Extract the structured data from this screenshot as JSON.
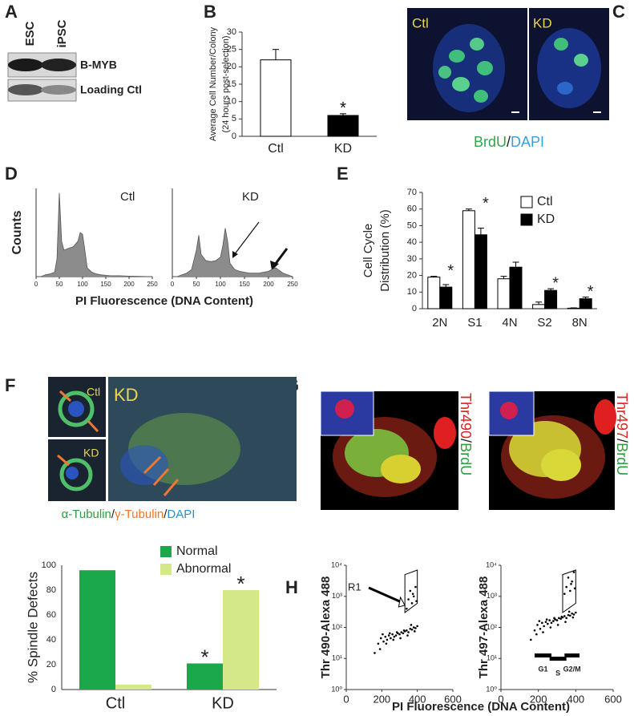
{
  "panels": {
    "A": {
      "letter": "A",
      "lanes": [
        "ESC",
        "iPSC"
      ],
      "bands": [
        "B-MYB",
        "Loading Ctl"
      ]
    },
    "B": {
      "letter": "B"
    },
    "C": {
      "letter": "C",
      "labels": [
        "Ctl",
        "KD"
      ],
      "caption": [
        "BrdU",
        "/",
        "DAPI"
      ]
    },
    "D": {
      "letter": "D"
    },
    "E": {
      "letter": "E"
    },
    "F": {
      "letter": "F",
      "labels": [
        "Ctl",
        "KD",
        "KD"
      ],
      "caption": [
        "α-Tubulin",
        "/",
        "γ-Tubulin",
        "/",
        "DAPI"
      ]
    },
    "G": {
      "letter": "G",
      "labels": [
        [
          "Thr490",
          "/",
          "BrdU"
        ],
        [
          "Thr497",
          "/",
          "BrdU"
        ]
      ]
    },
    "H": {
      "letter": "H"
    }
  },
  "chart_data": [
    {
      "type": "bar",
      "ylabel": [
        "Average Cell Number/Colony",
        "(24 hours post-selection)"
      ],
      "categories": [
        "Ctl",
        "KD"
      ],
      "values": [
        22,
        6
      ],
      "errors": [
        3,
        0.5
      ],
      "colors": [
        "#ffffff",
        "#000000"
      ],
      "significance": [
        null,
        "*"
      ],
      "ylim": [
        0,
        30
      ],
      "yticks": [
        0,
        5,
        10,
        15,
        20,
        25,
        30
      ]
    },
    {
      "type": "area",
      "label": "Ctl",
      "ylabel": "Counts",
      "xlabel": "PI Fluorescence (DNA Content)",
      "color": "#8c8c8c",
      "x": [
        0,
        10,
        20,
        30,
        40,
        45,
        50,
        55,
        60,
        70,
        80,
        90,
        95,
        100,
        105,
        110,
        120,
        130,
        140,
        160,
        180,
        200,
        220,
        250
      ],
      "values": [
        0,
        0,
        2,
        3,
        5,
        20,
        95,
        40,
        30,
        32,
        34,
        40,
        50,
        48,
        30,
        10,
        5,
        3,
        2,
        1,
        1,
        0.5,
        0.3,
        0
      ],
      "xlim": [
        0,
        250
      ],
      "xticks": [
        0,
        50,
        100,
        150,
        200,
        250
      ],
      "ylim": [
        0,
        100
      ]
    },
    {
      "type": "area",
      "label": "KD",
      "color": "#8c8c8c",
      "x": [
        0,
        10,
        20,
        30,
        40,
        50,
        55,
        60,
        70,
        80,
        90,
        100,
        105,
        110,
        115,
        120,
        130,
        140,
        160,
        180,
        200,
        210,
        215,
        220,
        230,
        240,
        250
      ],
      "values": [
        0,
        0,
        2,
        4,
        8,
        30,
        47,
        25,
        18,
        17,
        18,
        22,
        35,
        55,
        40,
        15,
        8,
        6,
        4,
        4,
        6,
        9,
        10,
        8,
        4,
        2,
        0
      ],
      "xlim": [
        0,
        250
      ],
      "xticks": [
        0,
        50,
        100,
        150,
        200,
        250
      ],
      "ylim": [
        0,
        100
      ]
    },
    {
      "type": "bar",
      "ylabel": [
        "Cell Cycle",
        "Distribution (%)"
      ],
      "categories": [
        "2N",
        "S1",
        "4N",
        "S2",
        "8N"
      ],
      "series": [
        {
          "name": "Ctl",
          "color": "#ffffff",
          "values": [
            19,
            59,
            18,
            2.5,
            0.3
          ],
          "errors": [
            0.5,
            1,
            1.5,
            1.5,
            0.2
          ]
        },
        {
          "name": "KD",
          "color": "#000000",
          "values": [
            13,
            44.5,
            25,
            11,
            6
          ],
          "errors": [
            1.5,
            4,
            3,
            1,
            1
          ]
        }
      ],
      "significance": [
        "*",
        "*",
        null,
        "*",
        "*"
      ],
      "ylim": [
        0,
        70
      ],
      "yticks": [
        0,
        10,
        20,
        30,
        40,
        50,
        60,
        70
      ]
    },
    {
      "type": "bar",
      "ylabel": "% Spindle Defects",
      "categories": [
        "Ctl",
        "KD"
      ],
      "series": [
        {
          "name": "Normal",
          "color": "#1aa84a",
          "values": [
            96,
            21
          ],
          "significance": [
            null,
            "*"
          ]
        },
        {
          "name": "Abnormal",
          "color": "#d4e88a",
          "values": [
            4,
            80
          ],
          "significance": [
            null,
            "*"
          ]
        }
      ],
      "ylim": [
        0,
        100
      ],
      "yticks": [
        0,
        20,
        40,
        60,
        80,
        100
      ]
    },
    {
      "type": "scatter",
      "ylabel": "Thr 490-Alexa 488",
      "xlabel": "PI Fluorescence (DNA Content)",
      "annotation": "R1",
      "log_y": true,
      "color": "#000000",
      "x": [
        180,
        195,
        210,
        220,
        230,
        240,
        250,
        260,
        270,
        280,
        290,
        300,
        310,
        320,
        330,
        340,
        350,
        360,
        370,
        380,
        390,
        400,
        205,
        225,
        245,
        265,
        285,
        305,
        325,
        345,
        365,
        385,
        160,
        190,
        350,
        360,
        370,
        380,
        390,
        340,
        375,
        395
      ],
      "values": [
        30,
        45,
        35,
        50,
        40,
        55,
        45,
        60,
        50,
        55,
        65,
        60,
        70,
        65,
        75,
        80,
        70,
        90,
        85,
        100,
        95,
        110,
        60,
        30,
        65,
        40,
        70,
        45,
        80,
        55,
        120,
        75,
        15,
        20,
        800,
        1500,
        600,
        1000,
        2000,
        400,
        1200,
        700
      ],
      "xlim": [
        0,
        600
      ],
      "xticks": [
        0,
        200,
        400,
        600
      ],
      "ylim": [
        1,
        10000
      ],
      "yticks": [
        {
          "value": 1,
          "label": "10⁰"
        },
        {
          "value": 10,
          "label": "10¹"
        },
        {
          "value": 100,
          "label": "10²"
        },
        {
          "value": 1000,
          "label": "10³"
        },
        {
          "value": 10000,
          "label": "10⁴"
        }
      ]
    },
    {
      "type": "scatter",
      "ylabel": "Thr 497-Alexa 488",
      "phase_labels": [
        "G1",
        "S",
        "G2/M"
      ],
      "log_y": true,
      "color": "#000000",
      "x": [
        180,
        195,
        210,
        220,
        230,
        240,
        250,
        260,
        270,
        280,
        290,
        300,
        310,
        320,
        330,
        340,
        350,
        360,
        370,
        380,
        390,
        400,
        205,
        225,
        245,
        265,
        285,
        305,
        325,
        345,
        365,
        385,
        160,
        190,
        350,
        360,
        370,
        380,
        390,
        340,
        375,
        395
      ],
      "values": [
        80,
        120,
        90,
        140,
        110,
        150,
        130,
        170,
        140,
        160,
        180,
        170,
        200,
        190,
        210,
        230,
        200,
        250,
        240,
        280,
        260,
        300,
        160,
        70,
        180,
        100,
        200,
        120,
        220,
        150,
        320,
        210,
        40,
        60,
        2000,
        4000,
        1500,
        3000,
        6000,
        1200,
        2500,
        1800
      ],
      "xlim": [
        0,
        600
      ],
      "xticks": [
        0,
        200,
        400,
        600
      ],
      "ylim": [
        1,
        10000
      ],
      "yticks": [
        {
          "value": 1,
          "label": "10⁰"
        },
        {
          "value": 10,
          "label": "10¹"
        },
        {
          "value": 100,
          "label": "10²"
        },
        {
          "value": 1000,
          "label": "10³"
        },
        {
          "value": 10000,
          "label": "10⁴"
        }
      ]
    }
  ]
}
